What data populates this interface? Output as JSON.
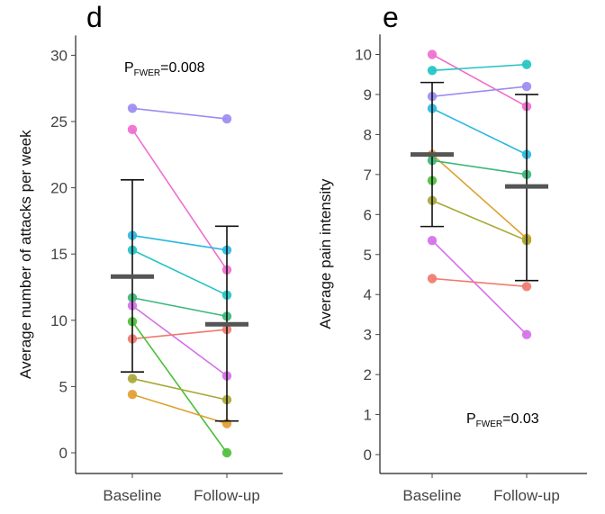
{
  "chart_data": [
    {
      "type": "line",
      "panel_label": "d",
      "categories": [
        "Baseline",
        "Follow-up"
      ],
      "ylabel": "Average number of attacks per week",
      "yticks": [
        0,
        5,
        10,
        15,
        20,
        25,
        30
      ],
      "ylim": [
        -0.5,
        31.5
      ],
      "annotation": {
        "prefix": "P",
        "subscript": "FWER",
        "value": "=0.008"
      },
      "series": [
        {
          "color": "#9b8cf0",
          "values": [
            26.0,
            25.2
          ]
        },
        {
          "color": "#ef6ecf",
          "values": [
            24.4,
            13.8
          ]
        },
        {
          "color": "#29b8e0",
          "values": [
            16.4,
            15.3
          ]
        },
        {
          "color": "#22c4c4",
          "values": [
            15.3,
            11.9
          ]
        },
        {
          "color": "#3ab87a",
          "values": [
            11.7,
            10.3
          ]
        },
        {
          "color": "#d470e8",
          "values": [
            11.1,
            5.8
          ]
        },
        {
          "color": "#f07a6e",
          "values": [
            8.6,
            9.3
          ]
        },
        {
          "color": "#4cbf3a",
          "values": [
            9.9,
            0.0
          ]
        },
        {
          "color": "#a8a836",
          "values": [
            5.6,
            4.0
          ]
        },
        {
          "color": "#e0a030",
          "values": [
            4.4,
            2.2
          ]
        }
      ],
      "summary": {
        "mean": [
          13.3,
          9.7
        ],
        "lower": [
          6.1,
          2.4
        ],
        "upper": [
          20.6,
          17.1
        ]
      }
    },
    {
      "type": "line",
      "panel_label": "e",
      "categories": [
        "Baseline",
        "Follow-up"
      ],
      "ylabel": "Average pain intensity",
      "yticks": [
        0,
        1,
        2,
        3,
        4,
        5,
        6,
        7,
        8,
        9,
        10
      ],
      "ylim": [
        -0.3,
        10.5
      ],
      "annotation": {
        "prefix": "P",
        "subscript": "FWER",
        "value": "=0.03"
      },
      "series": [
        {
          "color": "#ef6ecf",
          "values": [
            10.0,
            8.7
          ]
        },
        {
          "color": "#22c4c4",
          "values": [
            9.6,
            9.75
          ]
        },
        {
          "color": "#9b8cf0",
          "values": [
            8.95,
            9.2
          ]
        },
        {
          "color": "#29b8e0",
          "values": [
            8.65,
            7.5
          ]
        },
        {
          "color": "#e0a030",
          "values": [
            7.5,
            5.4
          ]
        },
        {
          "color": "#3ab87a",
          "values": [
            7.35,
            7.0
          ]
        },
        {
          "color": "#4cbf3a",
          "values": [
            6.85,
            null
          ]
        },
        {
          "color": "#a8a836",
          "values": [
            6.35,
            5.35
          ]
        },
        {
          "color": "#d470e8",
          "values": [
            5.35,
            3.0
          ]
        },
        {
          "color": "#f07a6e",
          "values": [
            4.4,
            4.2
          ]
        }
      ],
      "summary": {
        "mean": [
          7.5,
          6.7
        ],
        "lower": [
          5.7,
          4.35
        ],
        "upper": [
          9.3,
          9.0
        ]
      }
    }
  ]
}
